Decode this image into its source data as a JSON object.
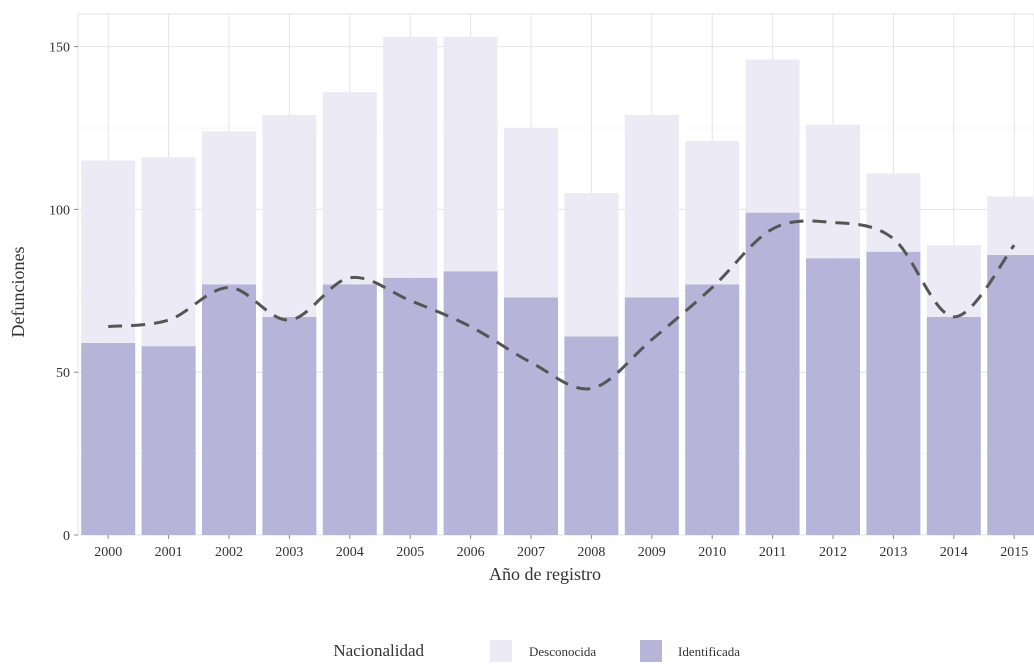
{
  "chart_data": {
    "type": "bar",
    "stacked": true,
    "xlabel": "Año de registro",
    "ylabel": "Defunciones",
    "ylim": [
      0,
      160
    ],
    "yticks": [
      0,
      50,
      100,
      150
    ],
    "grid": true,
    "categories": [
      "2000",
      "2001",
      "2002",
      "2003",
      "2004",
      "2005",
      "2006",
      "2007",
      "2008",
      "2009",
      "2010",
      "2011",
      "2012",
      "2013",
      "2014",
      "2015"
    ],
    "series": [
      {
        "name": "Identificada",
        "color": "#b6b5d9",
        "values": [
          59,
          58,
          77,
          67,
          77,
          79,
          81,
          73,
          61,
          73,
          77,
          99,
          85,
          87,
          67,
          86
        ]
      },
      {
        "name": "Desconocida",
        "color": "#ecebf5",
        "values": [
          56,
          58,
          47,
          62,
          59,
          74,
          72,
          52,
          44,
          56,
          44,
          47,
          41,
          24,
          22,
          18
        ]
      }
    ],
    "trend_line": {
      "style": "dashed",
      "color": "#555555",
      "values": [
        64,
        66,
        76,
        66,
        79,
        72,
        64,
        53,
        45,
        60,
        76,
        94,
        96,
        91,
        67,
        89
      ]
    },
    "legend": {
      "title": "Nacionalidad",
      "position": "bottom",
      "entries": [
        {
          "label": "Desconocida",
          "color": "#ecebf5"
        },
        {
          "label": "Identificada",
          "color": "#b6b5d9"
        }
      ]
    }
  }
}
